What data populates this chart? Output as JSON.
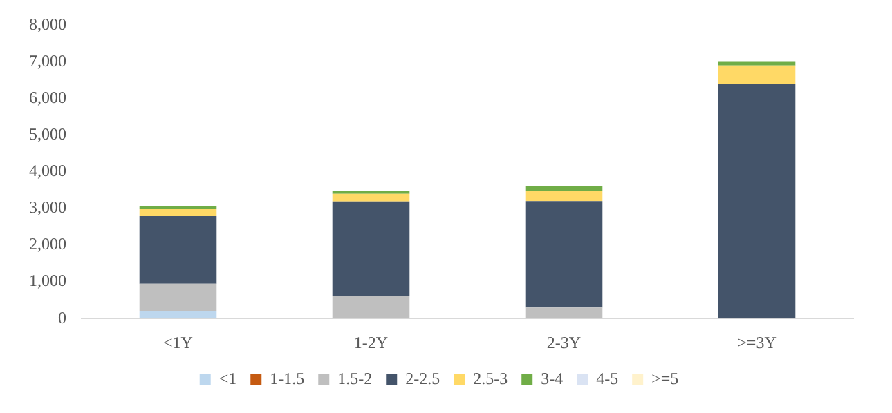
{
  "chart_data": {
    "type": "bar",
    "stacked": true,
    "categories": [
      "<1Y",
      "1-2Y",
      "2-3Y",
      ">=3Y"
    ],
    "ylim": [
      0,
      8000
    ],
    "yticks": [
      {
        "value": 0,
        "label": "0"
      },
      {
        "value": 1000,
        "label": "1,000"
      },
      {
        "value": 2000,
        "label": "2,000"
      },
      {
        "value": 3000,
        "label": "3,000"
      },
      {
        "value": 4000,
        "label": "4,000"
      },
      {
        "value": 5000,
        "label": "5,000"
      },
      {
        "value": 6000,
        "label": "6,000"
      },
      {
        "value": 7000,
        "label": "7,000"
      },
      {
        "value": 8000,
        "label": "8,000"
      }
    ],
    "grid": false,
    "legend": "bottom",
    "series": [
      {
        "name": "<1",
        "color": "#bdd7ee",
        "values": [
          200,
          0,
          0,
          0
        ]
      },
      {
        "name": "1-1.5",
        "color": "#c55a11",
        "values": [
          0,
          0,
          0,
          0
        ]
      },
      {
        "name": "1.5-2",
        "color": "#bfbfbf",
        "values": [
          750,
          620,
          300,
          0
        ]
      },
      {
        "name": "2-2.5",
        "color": "#44546a",
        "values": [
          1840,
          2570,
          2900,
          6400
        ]
      },
      {
        "name": "2.5-3",
        "color": "#ffd966",
        "values": [
          200,
          210,
          280,
          500
        ]
      },
      {
        "name": "3-4",
        "color": "#70ad47",
        "values": [
          80,
          70,
          120,
          100
        ]
      },
      {
        "name": "4-5",
        "color": "#dae3f3",
        "values": [
          0,
          0,
          0,
          0
        ]
      },
      {
        "name": ">=5",
        "color": "#fff2cc",
        "values": [
          0,
          0,
          0,
          0
        ]
      }
    ]
  }
}
